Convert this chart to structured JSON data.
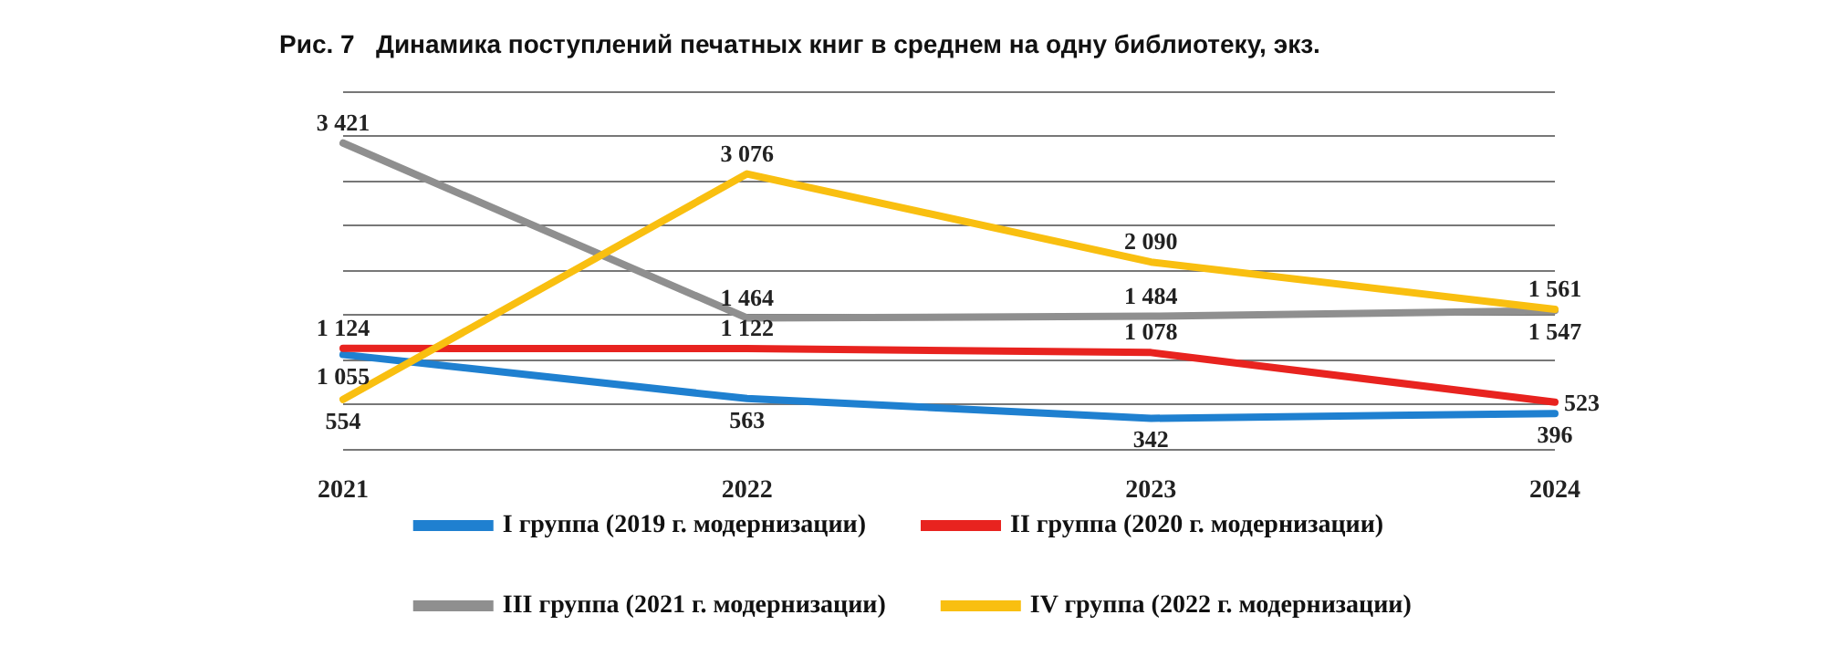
{
  "chart_data": {
    "type": "line",
    "title": "Рис. 7   Динамика поступлений печатных книг в среднем на одну библиотеку, экз.",
    "categories": [
      "2021",
      "2022",
      "2023",
      "2024"
    ],
    "series": [
      {
        "name": "I группа (2019 г. модернизации)",
        "color": "#1f80d0",
        "values": [
          1055,
          563,
          342,
          396
        ]
      },
      {
        "name": "II группа (2020 г. модернизации)",
        "color": "#e8231f",
        "values": [
          1124,
          1122,
          1078,
          523
        ]
      },
      {
        "name": "III группа (2021 г. модернизации)",
        "color": "#8f8f8f",
        "values": [
          3421,
          1464,
          1484,
          1547
        ]
      },
      {
        "name": "IV группа (2022 г. модернизации)",
        "color": "#f9bf10",
        "values": [
          554,
          3076,
          2090,
          1561
        ]
      }
    ],
    "ylim": [
      0,
      4000
    ],
    "yticks": [
      {
        "value": 0,
        "label": null
      },
      {
        "value": 500,
        "label": null
      },
      {
        "value": 1000,
        "label": null
      },
      {
        "value": 1500,
        "label": null
      },
      {
        "value": 2000,
        "label": null
      },
      {
        "value": 2500,
        "label": null
      },
      {
        "value": 3000,
        "label": null
      },
      {
        "value": 3500,
        "label": null
      },
      {
        "value": 4000,
        "label": null
      }
    ],
    "tick_labels": "x",
    "grid": "y",
    "legend": "bottom",
    "marker": "none",
    "line_style": "solid",
    "data_labels": true
  }
}
